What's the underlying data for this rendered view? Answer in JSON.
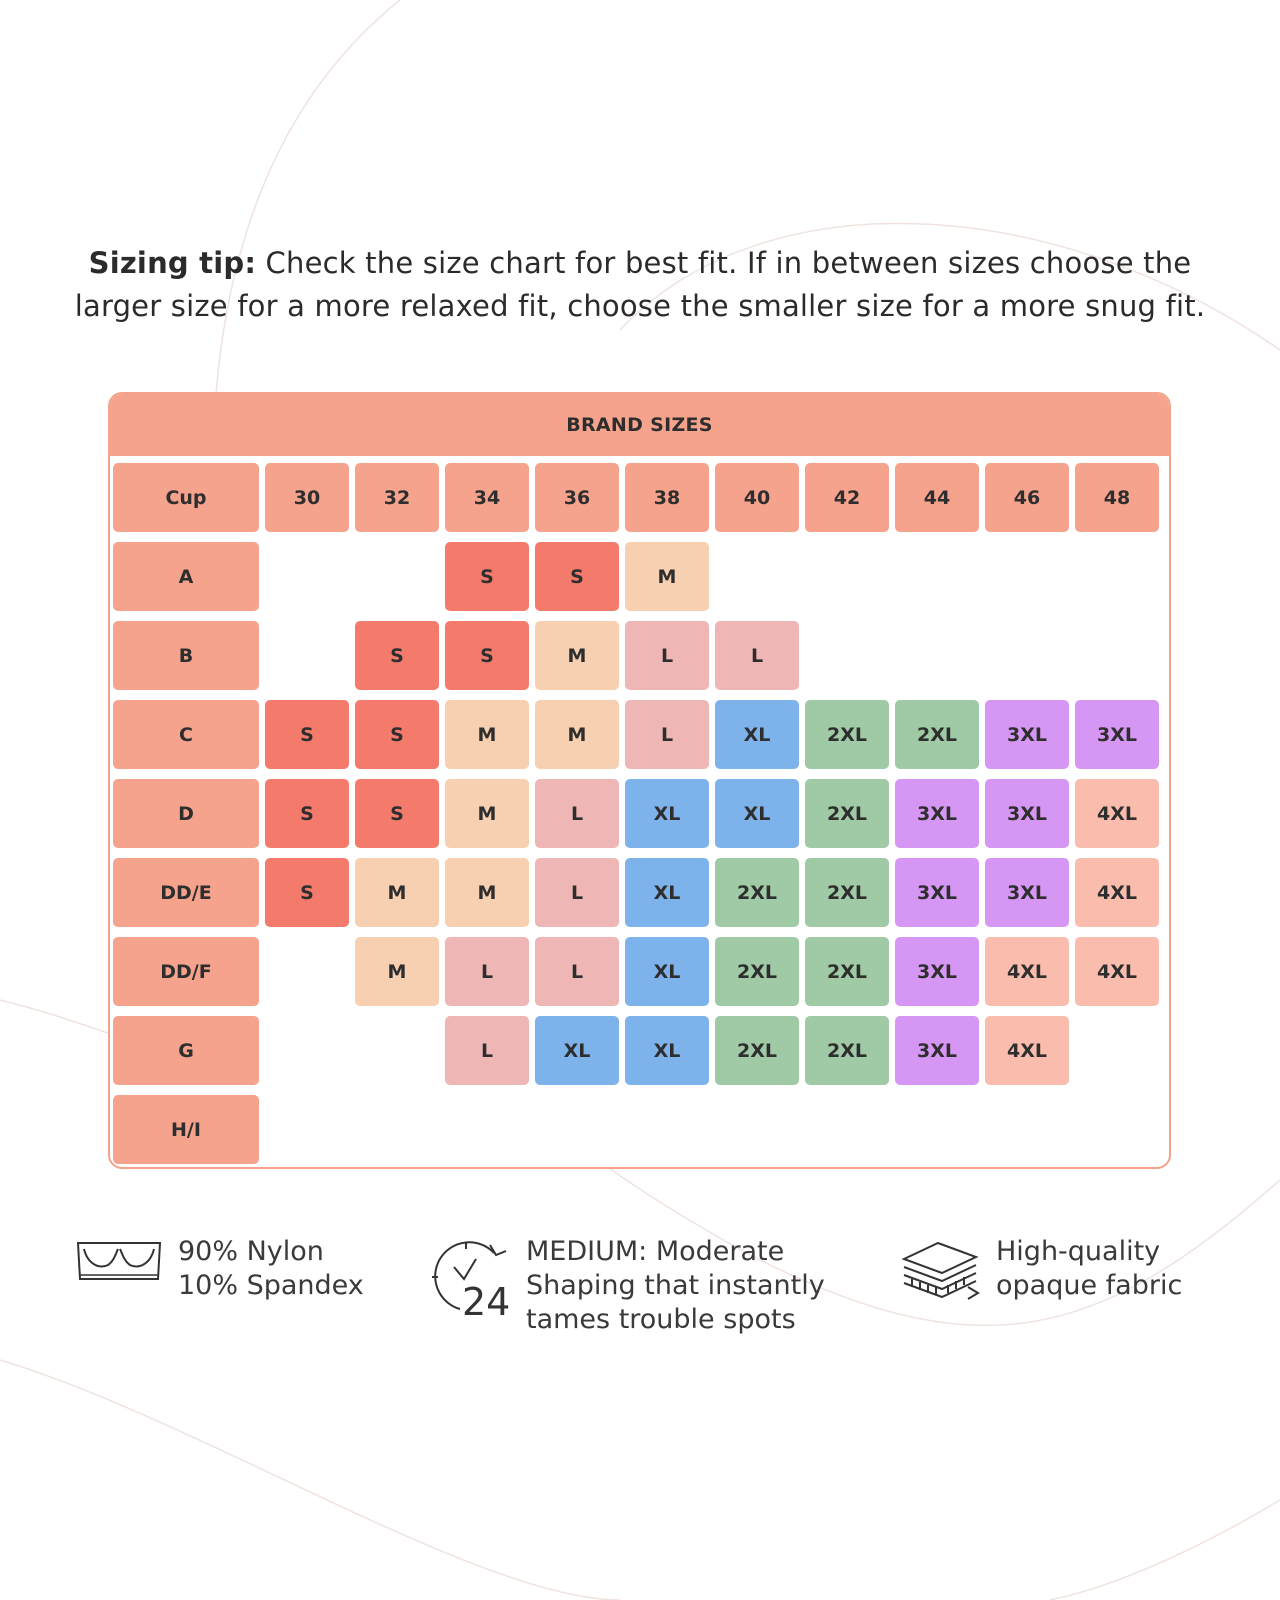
{
  "sizing_tip": {
    "label": "Sizing tip:",
    "text_line1": " Check the size chart for best fit. If in between sizes choose the",
    "text_line2": "larger size for a more relaxed fit, choose the smaller size for a more snug fit."
  },
  "chart_data": {
    "type": "table",
    "title": "BRAND SIZES",
    "corner_label": "Cup",
    "columns": [
      "30",
      "32",
      "34",
      "36",
      "38",
      "40",
      "42",
      "44",
      "46",
      "48"
    ],
    "rows": [
      {
        "cup": "A",
        "cells": [
          "",
          "",
          "S",
          "S",
          "M",
          "",
          "",
          "",
          "",
          ""
        ]
      },
      {
        "cup": "B",
        "cells": [
          "",
          "S",
          "S",
          "M",
          "L",
          "L",
          "",
          "",
          "",
          ""
        ]
      },
      {
        "cup": "C",
        "cells": [
          "S",
          "S",
          "M",
          "M",
          "L",
          "XL",
          "2XL",
          "2XL",
          "3XL",
          "3XL"
        ]
      },
      {
        "cup": "D",
        "cells": [
          "S",
          "S",
          "M",
          "L",
          "XL",
          "XL",
          "2XL",
          "3XL",
          "3XL",
          "4XL"
        ]
      },
      {
        "cup": "DD/E",
        "cells": [
          "S",
          "M",
          "M",
          "L",
          "XL",
          "2XL",
          "2XL",
          "3XL",
          "3XL",
          "4XL"
        ]
      },
      {
        "cup": "DD/F",
        "cells": [
          "",
          "M",
          "L",
          "L",
          "XL",
          "2XL",
          "2XL",
          "3XL",
          "4XL",
          "4XL"
        ]
      },
      {
        "cup": "G",
        "cells": [
          "",
          "",
          "L",
          "XL",
          "XL",
          "2XL",
          "2XL",
          "3XL",
          "4XL",
          ""
        ]
      },
      {
        "cup": "H/I",
        "cells": [
          "",
          "",
          "",
          "",
          "",
          "",
          "",
          "",
          "",
          ""
        ]
      }
    ],
    "size_colors": {
      "S": "#f47b6b",
      "M": "#f7d0b2",
      "L": "#efb6b6",
      "XL": "#7eb2ea",
      "2XL": "#9fcaa5",
      "3XL": "#d696f4",
      "4XL": "#f9bcad"
    },
    "header_color": "#f5a38c"
  },
  "features": [
    {
      "icon": "bra-icon",
      "lines": [
        "90% Nylon",
        "10% Spandex"
      ]
    },
    {
      "icon": "clock-24-icon",
      "lines": [
        "MEDIUM: Moderate",
        "Shaping that instantly",
        "tames trouble spots"
      ]
    },
    {
      "icon": "fabric-layers-icon",
      "lines": [
        "High-quality",
        "opaque fabric"
      ]
    }
  ]
}
